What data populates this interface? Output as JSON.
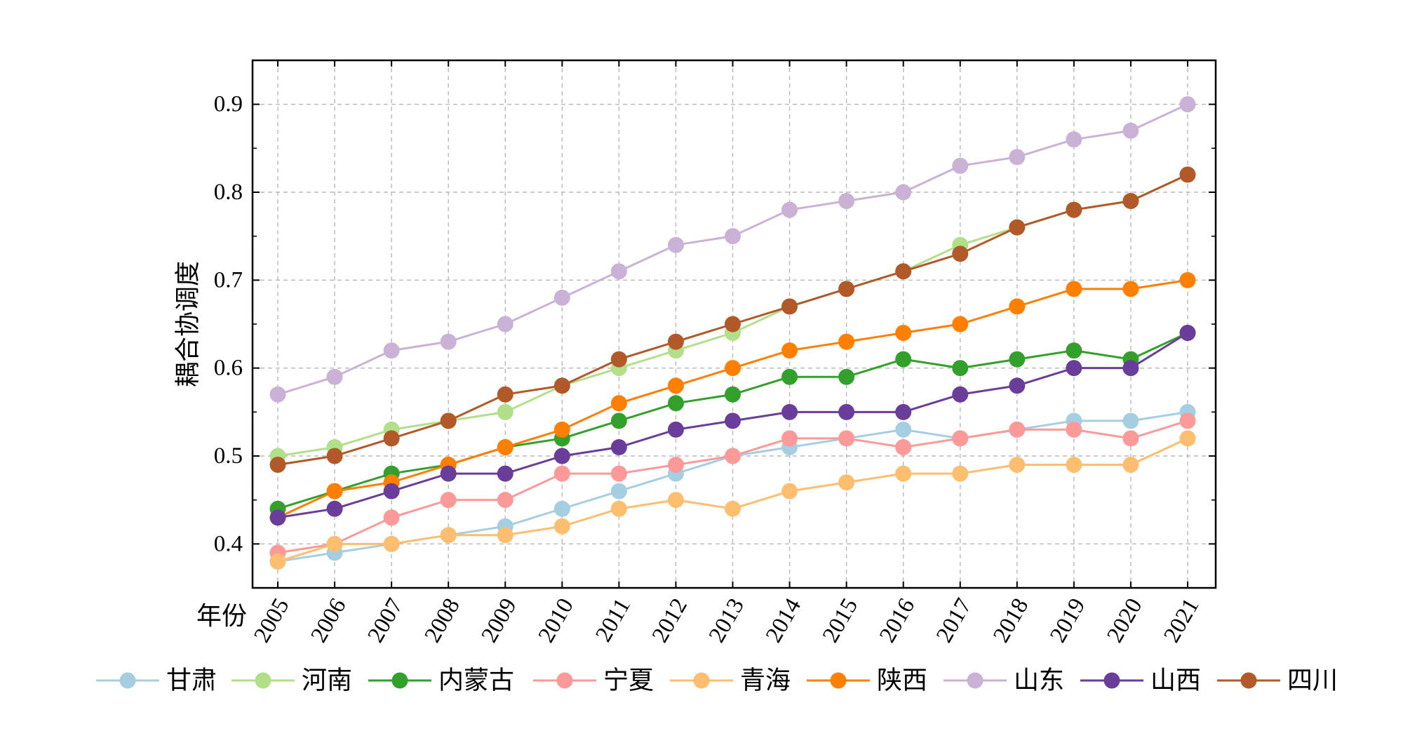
{
  "chart_data": {
    "type": "line",
    "xlabel": "年份",
    "ylabel": "耦合协调度",
    "ylim": [
      0.35,
      0.95
    ],
    "yticks": [
      0.4,
      0.5,
      0.6,
      0.7,
      0.8,
      0.9
    ],
    "ytick_labels": [
      "0.4",
      "0.5",
      "0.6",
      "0.7",
      "0.8",
      "0.9"
    ],
    "x": [
      "2005",
      "2006",
      "2007",
      "2008",
      "2009",
      "2010",
      "2011",
      "2012",
      "2013",
      "2014",
      "2015",
      "2016",
      "2017",
      "2018",
      "2019",
      "2020",
      "2021"
    ],
    "grid": true,
    "legend_position": "bottom",
    "series": [
      {
        "name": "甘肃",
        "color": "#a6cee3",
        "values": [
          0.38,
          0.39,
          0.4,
          0.41,
          0.42,
          0.44,
          0.46,
          0.48,
          0.5,
          0.51,
          0.52,
          0.53,
          0.52,
          0.53,
          0.54,
          0.54,
          0.55
        ]
      },
      {
        "name": "河南",
        "color": "#b2df8a",
        "values": [
          0.5,
          0.51,
          0.53,
          0.54,
          0.55,
          0.58,
          0.6,
          0.62,
          0.64,
          0.67,
          0.69,
          0.71,
          0.74,
          0.76,
          0.78,
          0.79,
          0.82
        ]
      },
      {
        "name": "内蒙古",
        "color": "#33a02c",
        "values": [
          0.44,
          0.46,
          0.48,
          0.49,
          0.51,
          0.52,
          0.54,
          0.56,
          0.57,
          0.59,
          0.59,
          0.61,
          0.6,
          0.61,
          0.62,
          0.61,
          0.64
        ]
      },
      {
        "name": "宁夏",
        "color": "#fb9a99",
        "values": [
          0.39,
          0.4,
          0.43,
          0.45,
          0.45,
          0.48,
          0.48,
          0.49,
          0.5,
          0.52,
          0.52,
          0.51,
          0.52,
          0.53,
          0.53,
          0.52,
          0.54
        ]
      },
      {
        "name": "青海",
        "color": "#fdbf6f",
        "values": [
          0.38,
          0.4,
          0.4,
          0.41,
          0.41,
          0.42,
          0.44,
          0.45,
          0.44,
          0.46,
          0.47,
          0.48,
          0.48,
          0.49,
          0.49,
          0.49,
          0.52
        ]
      },
      {
        "name": "陕西",
        "color": "#ff7f00",
        "values": [
          0.43,
          0.46,
          0.47,
          0.49,
          0.51,
          0.53,
          0.56,
          0.58,
          0.6,
          0.62,
          0.63,
          0.64,
          0.65,
          0.67,
          0.69,
          0.69,
          0.7
        ]
      },
      {
        "name": "山东",
        "color": "#cab2d6",
        "values": [
          0.57,
          0.59,
          0.62,
          0.63,
          0.65,
          0.68,
          0.71,
          0.74,
          0.75,
          0.78,
          0.79,
          0.8,
          0.83,
          0.84,
          0.86,
          0.87,
          0.9
        ]
      },
      {
        "name": "山西",
        "color": "#6a3d9a",
        "values": [
          0.43,
          0.44,
          0.46,
          0.48,
          0.48,
          0.5,
          0.51,
          0.53,
          0.54,
          0.55,
          0.55,
          0.55,
          0.57,
          0.58,
          0.6,
          0.6,
          0.64
        ]
      },
      {
        "name": "四川",
        "color": "#b15928",
        "values": [
          0.49,
          0.5,
          0.52,
          0.54,
          0.57,
          0.58,
          0.61,
          0.63,
          0.65,
          0.67,
          0.69,
          0.71,
          0.73,
          0.76,
          0.78,
          0.79,
          0.82
        ]
      }
    ]
  }
}
